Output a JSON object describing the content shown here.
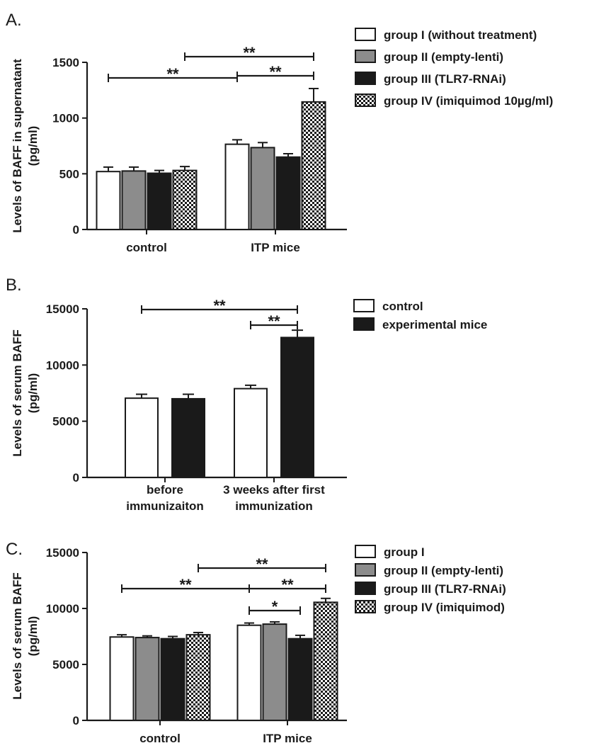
{
  "chart_data": [
    {
      "panel": "A.",
      "type": "bar",
      "categories": [
        "control",
        "ITP mice"
      ],
      "ylabel": "Levels of BAFF in supernatant (pg/ml)",
      "ylim": [
        0,
        1500
      ],
      "yticks": [
        "0",
        "500",
        "1000",
        "1500"
      ],
      "legend_position": "top-right",
      "series": [
        {
          "name": "group I (without treatment)",
          "fill": "white",
          "values": [
            520,
            765
          ],
          "errors": [
            40,
            40
          ]
        },
        {
          "name": "group II (empty-lenti)",
          "fill": "gray",
          "values": [
            525,
            735
          ],
          "errors": [
            35,
            45
          ]
        },
        {
          "name": "group III (TLR7-RNAi)",
          "fill": "black",
          "values": [
            505,
            650
          ],
          "errors": [
            25,
            30
          ]
        },
        {
          "name": "group IV (imiquimod 10µg/ml)",
          "fill": "checker",
          "values": [
            530,
            1145
          ],
          "errors": [
            35,
            120
          ]
        }
      ],
      "significance": [
        {
          "label": "**",
          "from": [
            0,
            0
          ],
          "to": [
            1,
            0
          ]
        },
        {
          "label": "**",
          "from": [
            1,
            0
          ],
          "to": [
            1,
            3
          ]
        },
        {
          "label": "**",
          "from": [
            0,
            3
          ],
          "to": [
            1,
            3
          ]
        }
      ]
    },
    {
      "panel": "B.",
      "type": "bar",
      "categories": [
        "before immunizaiton",
        "3 weeks after first immunization"
      ],
      "ylabel": "Levels of serum BAFF (pg/ml)",
      "ylim": [
        0,
        15000
      ],
      "yticks": [
        "0",
        "5000",
        "10000",
        "15000"
      ],
      "legend_position": "top-right",
      "series": [
        {
          "name": "control",
          "fill": "white",
          "values": [
            7050,
            7900
          ],
          "errors": [
            350,
            300
          ]
        },
        {
          "name": "experimental mice",
          "fill": "black",
          "values": [
            7000,
            12450
          ],
          "errors": [
            400,
            650
          ]
        }
      ],
      "significance": [
        {
          "label": "**",
          "from": [
            0,
            0
          ],
          "to": [
            1,
            1
          ]
        },
        {
          "label": "**",
          "from": [
            1,
            0
          ],
          "to": [
            1,
            1
          ]
        }
      ]
    },
    {
      "panel": "C.",
      "type": "bar",
      "categories": [
        "control",
        "ITP mice"
      ],
      "ylabel": "Levels of serum BAFF (pg/ml)",
      "ylim": [
        0,
        15000
      ],
      "yticks": [
        "0",
        "5000",
        "10000",
        "15000"
      ],
      "legend_position": "top-right",
      "series": [
        {
          "name": "group I",
          "fill": "white",
          "values": [
            7450,
            8500
          ],
          "errors": [
            200,
            200
          ]
        },
        {
          "name": "group II (empty-lenti)",
          "fill": "gray",
          "values": [
            7400,
            8600
          ],
          "errors": [
            150,
            200
          ]
        },
        {
          "name": "group III (TLR7-RNAi)",
          "fill": "black",
          "values": [
            7300,
            7300
          ],
          "errors": [
            200,
            300
          ]
        },
        {
          "name": "group IV (imiquimod)",
          "fill": "checker",
          "values": [
            7650,
            10550
          ],
          "errors": [
            200,
            350
          ]
        }
      ],
      "significance": [
        {
          "label": "**",
          "from": [
            0,
            0
          ],
          "to": [
            1,
            0
          ]
        },
        {
          "label": "**",
          "from": [
            1,
            0
          ],
          "to": [
            1,
            3
          ]
        },
        {
          "label": "*",
          "from": [
            1,
            0
          ],
          "to": [
            1,
            2
          ]
        },
        {
          "label": "**",
          "from": [
            0,
            3
          ],
          "to": [
            1,
            3
          ]
        }
      ]
    }
  ],
  "colors": {
    "gray": "#8c8c8c",
    "black": "#1a1a1a",
    "white": "#ffffff",
    "axis": "#1a1a1a"
  }
}
